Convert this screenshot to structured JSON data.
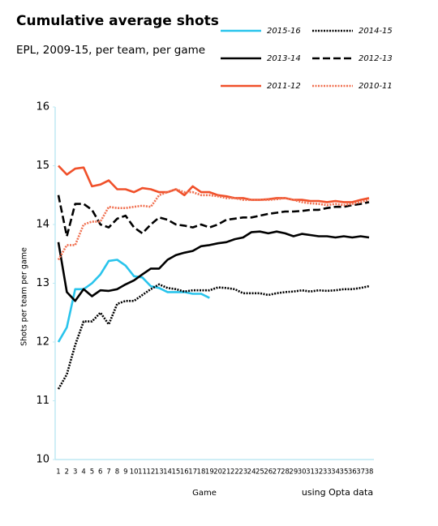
{
  "chart_data": {
    "type": "line",
    "title": "Cumulative average shots",
    "subtitle": "EPL, 2009-15, per team, per game",
    "x_label": "Game",
    "y_label": "Shots per team per game",
    "annotation": "using Opta data",
    "categories": [
      "1",
      "2",
      "3",
      "4",
      "5",
      "6",
      "7",
      "8",
      "9",
      "10",
      "11",
      "12",
      "13",
      "14",
      "15",
      "16",
      "17",
      "18",
      "19",
      "20",
      "21",
      "22",
      "23",
      "24",
      "25",
      "26",
      "27",
      "28",
      "29",
      "30",
      "31",
      "32",
      "33",
      "34",
      "35",
      "36",
      "37",
      "38"
    ],
    "ylim": [
      10,
      16
    ],
    "yticks": [
      10,
      11,
      12,
      13,
      14,
      15,
      16
    ],
    "grid": false,
    "series": [
      {
        "name": "2015-16",
        "color": "#29c4ec",
        "style": "solid",
        "values": [
          12.0,
          12.25,
          12.9,
          12.9,
          13.0,
          13.15,
          13.38,
          13.4,
          13.3,
          13.12,
          13.1,
          12.95,
          12.92,
          12.85,
          12.85,
          12.85,
          12.82,
          12.82,
          12.75,
          null,
          null,
          null,
          null,
          null,
          null,
          null,
          null,
          null,
          null,
          null,
          null,
          null,
          null,
          null,
          null,
          null,
          null,
          null
        ]
      },
      {
        "name": "2014-15",
        "color": "#000000",
        "style": "dotted",
        "values": [
          11.2,
          11.45,
          11.95,
          12.35,
          12.35,
          12.5,
          12.3,
          12.65,
          12.7,
          12.7,
          12.8,
          12.9,
          12.98,
          12.92,
          12.9,
          12.86,
          12.88,
          12.88,
          12.88,
          12.93,
          12.92,
          12.9,
          12.83,
          12.83,
          12.83,
          12.8,
          12.83,
          12.85,
          12.86,
          12.88,
          12.86,
          12.88,
          12.87,
          12.88,
          12.9,
          12.9,
          12.92,
          12.95
        ]
      },
      {
        "name": "2013-14",
        "color": "#000000",
        "style": "solid",
        "values": [
          13.7,
          12.85,
          12.7,
          12.9,
          12.78,
          12.88,
          12.87,
          12.9,
          12.98,
          13.05,
          13.15,
          13.25,
          13.25,
          13.4,
          13.48,
          13.52,
          13.55,
          13.63,
          13.65,
          13.68,
          13.7,
          13.75,
          13.78,
          13.87,
          13.88,
          13.85,
          13.88,
          13.85,
          13.8,
          13.84,
          13.82,
          13.8,
          13.8,
          13.78,
          13.8,
          13.78,
          13.8,
          13.78
        ]
      },
      {
        "name": "2012-13",
        "color": "#000000",
        "style": "dashed",
        "values": [
          14.5,
          13.8,
          14.35,
          14.35,
          14.25,
          14.0,
          13.95,
          14.1,
          14.15,
          13.95,
          13.85,
          14.0,
          14.12,
          14.08,
          14.0,
          13.98,
          13.95,
          14.0,
          13.95,
          14.0,
          14.08,
          14.1,
          14.12,
          14.12,
          14.15,
          14.18,
          14.2,
          14.22,
          14.22,
          14.23,
          14.25,
          14.25,
          14.28,
          14.3,
          14.3,
          14.33,
          14.35,
          14.38
        ]
      },
      {
        "name": "2011-12",
        "color": "#f0502a",
        "style": "solid",
        "values": [
          15.0,
          14.85,
          14.95,
          14.97,
          14.65,
          14.68,
          14.75,
          14.6,
          14.6,
          14.55,
          14.62,
          14.6,
          14.55,
          14.55,
          14.6,
          14.5,
          14.65,
          14.55,
          14.55,
          14.5,
          14.48,
          14.45,
          14.45,
          14.42,
          14.42,
          14.43,
          14.45,
          14.45,
          14.42,
          14.42,
          14.4,
          14.4,
          14.38,
          14.4,
          14.38,
          14.38,
          14.42,
          14.45
        ]
      },
      {
        "name": "2010-11",
        "color": "#f07050",
        "style": "dotted",
        "values": [
          13.4,
          13.65,
          13.65,
          14.0,
          14.05,
          14.05,
          14.3,
          14.28,
          14.28,
          14.3,
          14.32,
          14.3,
          14.5,
          14.55,
          14.6,
          14.55,
          14.55,
          14.5,
          14.5,
          14.48,
          14.45,
          14.45,
          14.42,
          14.42,
          14.42,
          14.42,
          14.43,
          14.45,
          14.42,
          14.38,
          14.36,
          14.35,
          14.33,
          14.35,
          14.33,
          14.35,
          14.38,
          14.42
        ]
      }
    ]
  }
}
